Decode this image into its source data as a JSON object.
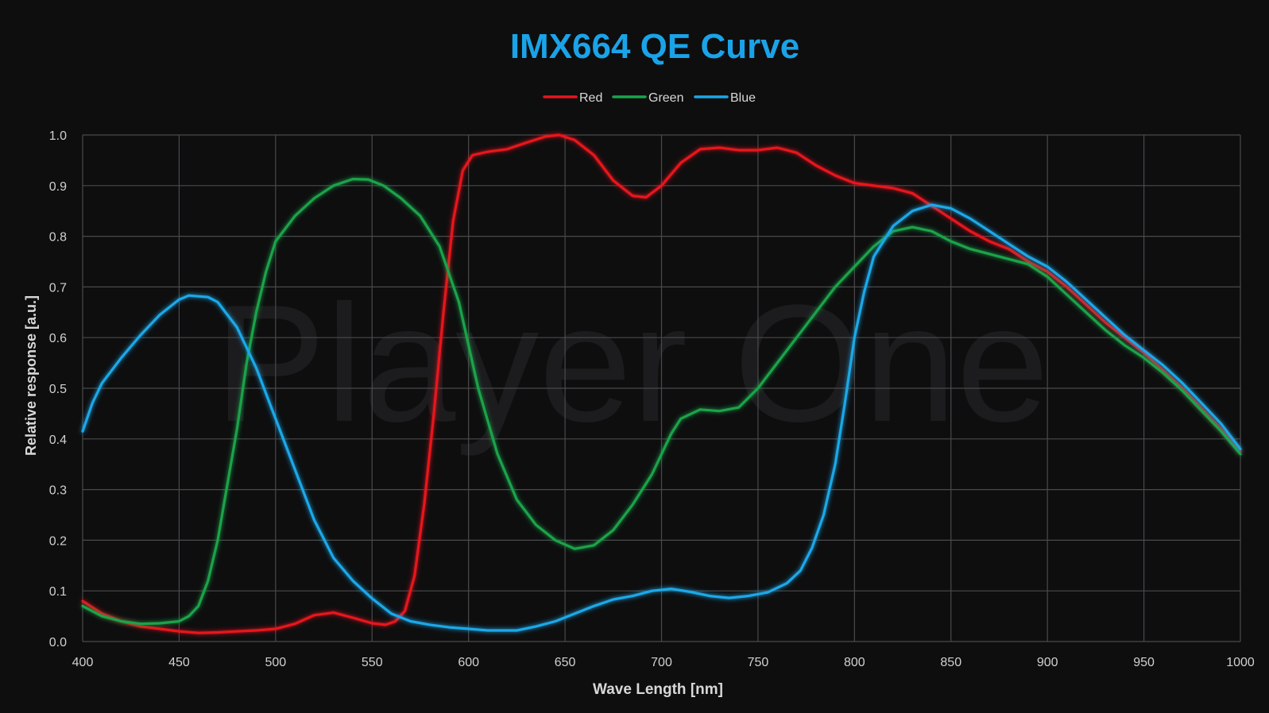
{
  "chart_data": {
    "type": "line",
    "title": "IMX664 QE Curve",
    "xlabel": "Wave Length [nm]",
    "ylabel": "Relative response [a.u.]",
    "watermark": "Player One",
    "xlim": [
      400,
      1000
    ],
    "ylim": [
      0,
      1
    ],
    "x_ticks": [
      400,
      450,
      500,
      550,
      600,
      650,
      700,
      750,
      800,
      850,
      900,
      950,
      1000
    ],
    "y_ticks": [
      0.0,
      0.1,
      0.2,
      0.3,
      0.4,
      0.5,
      0.6,
      0.7,
      0.8,
      0.9,
      1.0
    ],
    "grid": true,
    "legend_position": "top-center",
    "title_color": "#1aa3e8",
    "background_color": "#0e0e0f",
    "series": [
      {
        "name": "Red",
        "color": "#e8141e",
        "points": [
          [
            400,
            0.08
          ],
          [
            410,
            0.055
          ],
          [
            420,
            0.04
          ],
          [
            430,
            0.03
          ],
          [
            440,
            0.025
          ],
          [
            450,
            0.02
          ],
          [
            460,
            0.017
          ],
          [
            470,
            0.018
          ],
          [
            480,
            0.02
          ],
          [
            490,
            0.022
          ],
          [
            500,
            0.025
          ],
          [
            510,
            0.035
          ],
          [
            520,
            0.052
          ],
          [
            530,
            0.057
          ],
          [
            540,
            0.047
          ],
          [
            550,
            0.036
          ],
          [
            557,
            0.033
          ],
          [
            562,
            0.04
          ],
          [
            567,
            0.06
          ],
          [
            572,
            0.13
          ],
          [
            577,
            0.27
          ],
          [
            582,
            0.45
          ],
          [
            587,
            0.65
          ],
          [
            592,
            0.83
          ],
          [
            597,
            0.93
          ],
          [
            602,
            0.96
          ],
          [
            610,
            0.967
          ],
          [
            620,
            0.972
          ],
          [
            630,
            0.985
          ],
          [
            640,
            0.997
          ],
          [
            647,
            1.0
          ],
          [
            655,
            0.99
          ],
          [
            665,
            0.96
          ],
          [
            675,
            0.91
          ],
          [
            685,
            0.88
          ],
          [
            692,
            0.877
          ],
          [
            700,
            0.9
          ],
          [
            710,
            0.945
          ],
          [
            720,
            0.972
          ],
          [
            730,
            0.975
          ],
          [
            740,
            0.97
          ],
          [
            750,
            0.97
          ],
          [
            760,
            0.975
          ],
          [
            770,
            0.965
          ],
          [
            780,
            0.94
          ],
          [
            790,
            0.92
          ],
          [
            800,
            0.905
          ],
          [
            810,
            0.9
          ],
          [
            820,
            0.895
          ],
          [
            830,
            0.885
          ],
          [
            840,
            0.86
          ],
          [
            850,
            0.835
          ],
          [
            860,
            0.81
          ],
          [
            870,
            0.79
          ],
          [
            880,
            0.775
          ],
          [
            890,
            0.75
          ],
          [
            900,
            0.73
          ],
          [
            910,
            0.7
          ],
          [
            920,
            0.665
          ],
          [
            930,
            0.63
          ],
          [
            940,
            0.6
          ],
          [
            950,
            0.57
          ],
          [
            960,
            0.535
          ],
          [
            970,
            0.5
          ],
          [
            980,
            0.46
          ],
          [
            990,
            0.42
          ],
          [
            1000,
            0.375
          ]
        ]
      },
      {
        "name": "Green",
        "color": "#1aa34a",
        "points": [
          [
            400,
            0.07
          ],
          [
            410,
            0.05
          ],
          [
            420,
            0.04
          ],
          [
            430,
            0.035
          ],
          [
            440,
            0.036
          ],
          [
            450,
            0.04
          ],
          [
            455,
            0.05
          ],
          [
            460,
            0.07
          ],
          [
            465,
            0.12
          ],
          [
            470,
            0.2
          ],
          [
            475,
            0.31
          ],
          [
            480,
            0.42
          ],
          [
            485,
            0.55
          ],
          [
            490,
            0.65
          ],
          [
            495,
            0.73
          ],
          [
            500,
            0.79
          ],
          [
            510,
            0.84
          ],
          [
            520,
            0.875
          ],
          [
            530,
            0.9
          ],
          [
            540,
            0.913
          ],
          [
            548,
            0.912
          ],
          [
            556,
            0.9
          ],
          [
            565,
            0.875
          ],
          [
            575,
            0.84
          ],
          [
            585,
            0.78
          ],
          [
            595,
            0.67
          ],
          [
            605,
            0.5
          ],
          [
            615,
            0.37
          ],
          [
            625,
            0.28
          ],
          [
            635,
            0.23
          ],
          [
            645,
            0.2
          ],
          [
            655,
            0.183
          ],
          [
            665,
            0.19
          ],
          [
            675,
            0.22
          ],
          [
            685,
            0.27
          ],
          [
            695,
            0.33
          ],
          [
            705,
            0.41
          ],
          [
            710,
            0.44
          ],
          [
            720,
            0.458
          ],
          [
            730,
            0.455
          ],
          [
            740,
            0.462
          ],
          [
            750,
            0.5
          ],
          [
            760,
            0.55
          ],
          [
            770,
            0.6
          ],
          [
            780,
            0.65
          ],
          [
            790,
            0.7
          ],
          [
            800,
            0.74
          ],
          [
            810,
            0.78
          ],
          [
            820,
            0.81
          ],
          [
            830,
            0.818
          ],
          [
            840,
            0.81
          ],
          [
            850,
            0.79
          ],
          [
            860,
            0.775
          ],
          [
            870,
            0.765
          ],
          [
            880,
            0.755
          ],
          [
            890,
            0.745
          ],
          [
            900,
            0.72
          ],
          [
            910,
            0.685
          ],
          [
            920,
            0.65
          ],
          [
            930,
            0.615
          ],
          [
            940,
            0.585
          ],
          [
            950,
            0.56
          ],
          [
            960,
            0.53
          ],
          [
            970,
            0.495
          ],
          [
            980,
            0.455
          ],
          [
            990,
            0.415
          ],
          [
            1000,
            0.37
          ]
        ]
      },
      {
        "name": "Blue",
        "color": "#1ba8e8",
        "points": [
          [
            400,
            0.415
          ],
          [
            405,
            0.47
          ],
          [
            410,
            0.51
          ],
          [
            420,
            0.56
          ],
          [
            430,
            0.605
          ],
          [
            440,
            0.645
          ],
          [
            450,
            0.675
          ],
          [
            455,
            0.683
          ],
          [
            465,
            0.68
          ],
          [
            470,
            0.67
          ],
          [
            480,
            0.62
          ],
          [
            490,
            0.54
          ],
          [
            500,
            0.44
          ],
          [
            510,
            0.34
          ],
          [
            520,
            0.24
          ],
          [
            530,
            0.165
          ],
          [
            540,
            0.12
          ],
          [
            550,
            0.085
          ],
          [
            560,
            0.055
          ],
          [
            570,
            0.04
          ],
          [
            580,
            0.033
          ],
          [
            590,
            0.028
          ],
          [
            600,
            0.025
          ],
          [
            610,
            0.022
          ],
          [
            620,
            0.022
          ],
          [
            625,
            0.022
          ],
          [
            635,
            0.03
          ],
          [
            645,
            0.04
          ],
          [
            655,
            0.055
          ],
          [
            665,
            0.07
          ],
          [
            675,
            0.083
          ],
          [
            685,
            0.09
          ],
          [
            695,
            0.1
          ],
          [
            705,
            0.104
          ],
          [
            715,
            0.098
          ],
          [
            725,
            0.09
          ],
          [
            735,
            0.086
          ],
          [
            745,
            0.09
          ],
          [
            755,
            0.097
          ],
          [
            765,
            0.115
          ],
          [
            772,
            0.14
          ],
          [
            778,
            0.185
          ],
          [
            784,
            0.25
          ],
          [
            790,
            0.35
          ],
          [
            795,
            0.47
          ],
          [
            800,
            0.6
          ],
          [
            805,
            0.69
          ],
          [
            810,
            0.76
          ],
          [
            820,
            0.82
          ],
          [
            830,
            0.85
          ],
          [
            840,
            0.862
          ],
          [
            850,
            0.855
          ],
          [
            860,
            0.835
          ],
          [
            870,
            0.81
          ],
          [
            880,
            0.785
          ],
          [
            890,
            0.76
          ],
          [
            900,
            0.74
          ],
          [
            910,
            0.71
          ],
          [
            920,
            0.675
          ],
          [
            930,
            0.64
          ],
          [
            940,
            0.605
          ],
          [
            950,
            0.575
          ],
          [
            960,
            0.545
          ],
          [
            970,
            0.51
          ],
          [
            980,
            0.47
          ],
          [
            990,
            0.43
          ],
          [
            1000,
            0.38
          ]
        ]
      }
    ]
  }
}
